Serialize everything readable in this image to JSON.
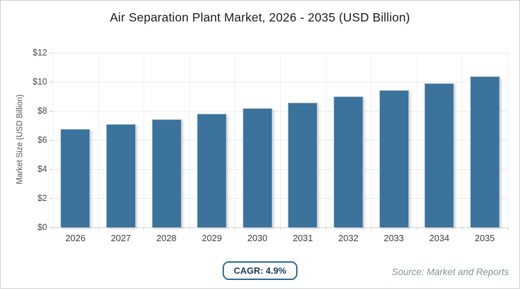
{
  "title": "Air Separation Plant Market, 2026 - 2035 (USD Billion)",
  "chart_data": {
    "type": "bar",
    "title": "Air Separation Plant Market, 2026 - 2035 (USD Billion)",
    "categories": [
      "2026",
      "2027",
      "2028",
      "2029",
      "2030",
      "2031",
      "2032",
      "2033",
      "2034",
      "2035"
    ],
    "values": [
      6.75,
      7.08,
      7.43,
      7.79,
      8.17,
      8.57,
      8.99,
      9.43,
      9.89,
      10.38
    ],
    "xlabel": "",
    "ylabel": "Market Size (USD Billion)",
    "ylim": [
      0,
      12
    ],
    "ytick_interval": 2,
    "ytick_labels": [
      "$0",
      "$2",
      "$4",
      "$6",
      "$8",
      "$10",
      "$12"
    ],
    "grid": true,
    "legend": "none",
    "bar_color": "#3b739c"
  },
  "footer": {
    "cagr_label": "CAGR: 4.9%",
    "source": "Source: Market and Reports"
  },
  "colors": {
    "bar": "#3b739c",
    "bar_edge_highlight": "#b9c8d3",
    "badge_border": "#2c6a94",
    "badge_text": "#1d3a56",
    "title_text": "#1b1b1b",
    "axis_text": "#4a4a4a",
    "source_text": "#8493a1",
    "gridline": "#ececec",
    "axis_line": "#d6d6d6",
    "background": "#ffffff"
  }
}
